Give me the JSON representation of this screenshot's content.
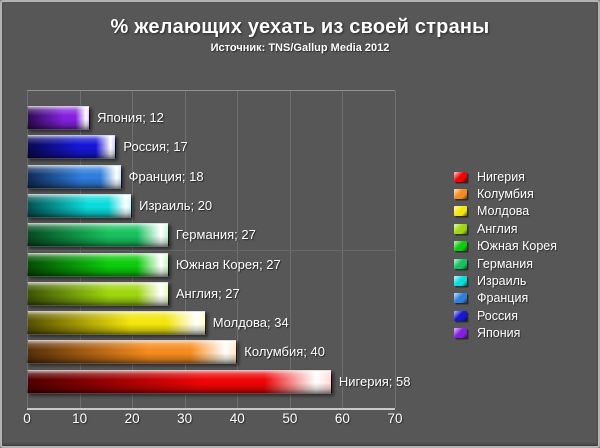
{
  "window": {
    "background": "#575757",
    "frame_border": "#b2b2b2"
  },
  "header": {
    "title": "% желающих уехать из своей страны",
    "subtitle": "Источник: TNS/Gallup Media 2012"
  },
  "chart_data": {
    "type": "bar",
    "orientation": "horizontal",
    "title": "% желающих уехать из своей страны",
    "source_note": "Источник: TNS/Gallup Media 2012",
    "value_axis": {
      "min": 0,
      "max": 70,
      "ticks": [
        0,
        10,
        20,
        30,
        40,
        50,
        60,
        70
      ]
    },
    "grid": "vertical major gridlines; single faint horizontal mid line; bottom axis line",
    "legend_position": "right",
    "label_format": "{category}; {value}",
    "bars_top_to_bottom": [
      {
        "category": "Япония",
        "value": 12,
        "color": "#8421e0",
        "color_dark": "#2d0a52",
        "color_light": "#e2ccf8"
      },
      {
        "category": "Россия",
        "value": 17,
        "color": "#1616d6",
        "color_dark": "#08084f",
        "color_light": "#c7c7f7"
      },
      {
        "category": "Франция",
        "value": 18,
        "color": "#2f7ddd",
        "color_dark": "#102b55",
        "color_light": "#cfe3fa"
      },
      {
        "category": "Израиль",
        "value": 20,
        "color": "#0adcdc",
        "color_dark": "#035252",
        "color_light": "#c8f7f7"
      },
      {
        "category": "Германия",
        "value": 27,
        "color": "#17c25e",
        "color_dark": "#064a22",
        "color_light": "#c4f2d9"
      },
      {
        "category": "Южная Корея",
        "value": 27,
        "color": "#0ccc0c",
        "color_dark": "#034d03",
        "color_light": "#c8f5c8"
      },
      {
        "category": "Англия",
        "value": 27,
        "color": "#9fd60f",
        "color_dark": "#3d5404",
        "color_light": "#e8f9c0"
      },
      {
        "category": "Молдова",
        "value": 34,
        "color": "#f2e60a",
        "color_dark": "#565000",
        "color_light": "#fdfbc8"
      },
      {
        "category": "Колумбия",
        "value": 40,
        "color": "#f78c1e",
        "color_dark": "#57300a",
        "color_light": "#ffe6c8"
      },
      {
        "category": "Нигерия",
        "value": 58,
        "color": "#ee0505",
        "color_dark": "#4f0000",
        "color_light": "#ffd8d8"
      }
    ],
    "legend_top_to_bottom": [
      "Нигерия",
      "Колумбия",
      "Молдова",
      "Англия",
      "Южная Корея",
      "Германия",
      "Израиль",
      "Франция",
      "Россия",
      "Япония"
    ]
  }
}
